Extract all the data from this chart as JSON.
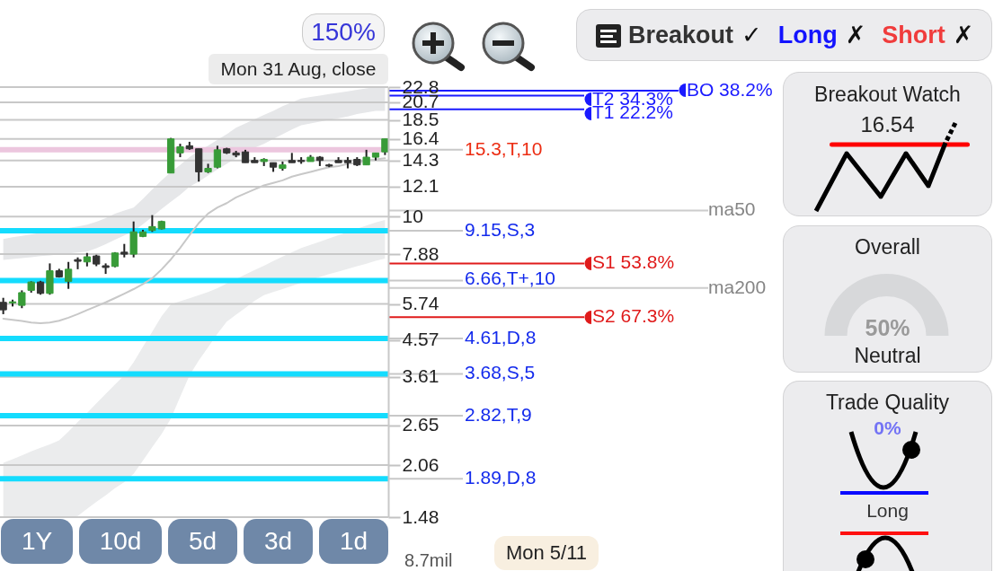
{
  "chart_data": [
    {
      "type": "candlestick",
      "categories": [
        null,
        null,
        null,
        null,
        null,
        null,
        null,
        null,
        null,
        null,
        null,
        null,
        null,
        null,
        null,
        null,
        null,
        null,
        null,
        null,
        null,
        null,
        null,
        null,
        null,
        null,
        null,
        null,
        null,
        null,
        null,
        null,
        null,
        null,
        null,
        null,
        null,
        null,
        null,
        null,
        null,
        null
      ],
      "ohlc": [
        [
          5.8,
          5.97,
          5.38,
          5.53
        ],
        [
          5.78,
          5.9,
          5.65,
          5.82
        ],
        [
          5.69,
          6.26,
          5.59,
          6.17
        ],
        [
          6.26,
          6.63,
          6.17,
          6.6
        ],
        [
          6.6,
          6.65,
          6.09,
          6.14
        ],
        [
          6.14,
          7.43,
          6.09,
          7.09
        ],
        [
          7.09,
          7.18,
          6.79,
          6.82
        ],
        [
          6.63,
          7.5,
          6.32,
          7.16
        ],
        [
          7.61,
          7.72,
          7.16,
          7.53
        ],
        [
          7.5,
          7.94,
          7.29,
          7.75
        ],
        [
          7.79,
          7.85,
          7.3,
          7.4
        ],
        [
          7.32,
          7.43,
          6.95,
          7.24
        ],
        [
          7.29,
          7.98,
          7.25,
          7.94
        ],
        [
          7.98,
          8.41,
          7.72,
          7.88
        ],
        [
          7.88,
          9.7,
          7.72,
          9.08
        ],
        [
          8.82,
          9.2,
          8.78,
          9.08
        ],
        [
          9.16,
          10.1,
          9.08,
          9.39
        ],
        [
          9.25,
          9.75,
          9.22,
          9.7
        ],
        [
          13.2,
          16.5,
          13.2,
          16.4
        ],
        [
          15.0,
          15.9,
          14.6,
          15.6
        ],
        [
          15.7,
          16.1,
          15.3,
          15.4
        ],
        [
          15.4,
          15.4,
          12.5,
          13.3
        ],
        [
          13.3,
          14.0,
          13.2,
          13.6
        ],
        [
          13.7,
          15.7,
          13.6,
          15.3
        ],
        [
          15.4,
          15.5,
          14.9,
          15.0
        ],
        [
          15.0,
          15.2,
          14.6,
          14.8
        ],
        [
          15.1,
          15.3,
          14.1,
          14.1
        ],
        [
          14.3,
          14.6,
          14.1,
          14.1
        ],
        [
          14.2,
          14.5,
          13.8,
          14.4
        ],
        [
          14.1,
          14.1,
          13.3,
          13.7
        ],
        [
          13.6,
          14.2,
          13.4,
          13.9
        ],
        [
          14.3,
          15.0,
          14.1,
          14.1
        ],
        [
          14.3,
          14.6,
          14.0,
          14.2
        ],
        [
          14.2,
          14.8,
          14.2,
          14.6
        ],
        [
          14.6,
          14.7,
          13.8,
          14.3
        ],
        [
          13.9,
          14.0,
          13.7,
          13.8
        ],
        [
          14.3,
          14.6,
          14.1,
          14.1
        ],
        [
          14.3,
          14.6,
          13.6,
          14.1
        ],
        [
          14.4,
          14.6,
          13.8,
          13.9
        ],
        [
          13.9,
          15.3,
          13.9,
          14.6
        ],
        [
          14.6,
          15.0,
          14.3,
          15.0
        ],
        [
          15.1,
          16.4,
          14.8,
          16.4
        ]
      ],
      "colors": [
        "#333333",
        "#389b38",
        "#389b38",
        "#389b38",
        "#333333",
        "#389b38",
        "#333333",
        "#389b38",
        "#333333",
        "#389b38",
        "#333333",
        "#333333",
        "#389b38",
        "#333333",
        "#389b38",
        "#389b38",
        "#389b38",
        "#389b38",
        "#389b38",
        "#389b38",
        "#333333",
        "#333333",
        "#389b38",
        "#389b38",
        "#333333",
        "#333333",
        "#333333",
        "#333333",
        "#389b38",
        "#333333",
        "#389b38",
        "#333333",
        "#333333",
        "#389b38",
        "#333333",
        "#333333",
        "#333333",
        "#333333",
        "#333333",
        "#389b38",
        "#389b38",
        "#389b38"
      ],
      "series": [
        {
          "type": "line",
          "color": "#c8c8c8",
          "values": [
            5.23,
            5.19,
            5.15,
            5.1,
            5.08,
            5.1,
            5.16,
            5.26,
            5.38,
            5.52,
            5.66,
            5.8,
            5.96,
            6.13,
            6.31,
            6.52,
            6.76,
            7.15,
            7.62,
            8.2,
            8.89,
            9.6,
            10.2,
            10.6,
            10.9,
            11.3,
            11.6,
            11.9,
            12.2,
            12.4,
            12.6,
            12.9,
            13.1,
            13.3,
            13.5,
            13.7,
            13.8,
            14.0,
            14.1,
            14.3,
            14.4,
            14.5
          ]
        },
        {
          "type": "area",
          "color": "#e6e7e9",
          "values": [
            null,
            null,
            null,
            null,
            null,
            null,
            null,
            null,
            null,
            null,
            null,
            null,
            null,
            null,
            null,
            null,
            null,
            null,
            null,
            null,
            null,
            null,
            null,
            null,
            null,
            null,
            null,
            null,
            null,
            null,
            null,
            null,
            null,
            null,
            null,
            null,
            null,
            null,
            null,
            null,
            null,
            null
          ],
          "upper": [
            8.68,
            8.77,
            8.85,
            8.94,
            9.03,
            9.12,
            9.22,
            9.31,
            9.4,
            9.5,
            9.68,
            9.91,
            10.2,
            10.4,
            10.6,
            11.2,
            11.9,
            12.6,
            13.3,
            13.9,
            14.6,
            15.2,
            15.7,
            16.3,
            16.9,
            17.6,
            18.1,
            18.6,
            19.1,
            19.6,
            20.2,
            20.7,
            21.2,
            21.4,
            21.6,
            21.8,
            22.0,
            22.2,
            22.4,
            22.6,
            22.8,
            22.8
          ],
          "lower": [
            7.6,
            7.64,
            7.68,
            7.73,
            7.78,
            7.82,
            7.87,
            7.92,
            7.96,
            8.01,
            8.18,
            8.4,
            8.64,
            8.88,
            9.12,
            9.53,
            9.99,
            10.5,
            11.0,
            11.5,
            12.1,
            12.5,
            13.0,
            13.5,
            14.0,
            14.5,
            15.0,
            15.5,
            15.9,
            16.4,
            16.9,
            17.4,
            17.9,
            18.1,
            18.3,
            18.5,
            18.7,
            18.9,
            19.2,
            19.4,
            19.6,
            19.6
          ]
        },
        {
          "type": "area",
          "color": "#ebeced",
          "values": [
            null,
            null,
            null,
            null,
            null,
            null,
            null,
            null,
            null,
            null,
            null,
            null,
            null,
            null,
            null,
            null,
            null,
            null,
            null,
            null,
            null,
            null,
            null,
            null,
            null,
            null,
            null,
            null,
            null,
            null,
            null,
            null,
            null,
            null,
            null,
            null,
            null,
            null,
            null,
            null,
            null,
            null
          ],
          "upper": [
            2.09,
            2.14,
            2.19,
            2.25,
            2.3,
            2.35,
            2.41,
            2.55,
            2.71,
            2.87,
            3.05,
            3.24,
            3.44,
            3.65,
            3.96,
            4.37,
            4.81,
            5.31,
            5.73,
            5.84,
            5.95,
            6.07,
            6.19,
            6.35,
            6.54,
            6.73,
            6.92,
            7.12,
            7.32,
            7.54,
            7.76,
            7.98,
            8.19,
            8.36,
            8.53,
            8.71,
            8.89,
            9.07,
            9.26,
            9.45,
            9.64,
            9.8
          ],
          "lower": [
            1.48,
            1.48,
            1.48,
            1.48,
            1.48,
            1.48,
            1.48,
            1.48,
            1.49,
            1.56,
            1.63,
            1.7,
            1.78,
            1.85,
            1.95,
            2.12,
            2.31,
            2.51,
            2.77,
            3.18,
            3.64,
            4.01,
            4.36,
            4.75,
            5.13,
            5.36,
            5.6,
            5.86,
            6.07,
            6.19,
            6.31,
            6.44,
            6.57,
            6.7,
            6.82,
            6.94,
            7.05,
            7.18,
            7.3,
            7.42,
            7.55,
            7.66
          ]
        }
      ],
      "ylim": [
        1.48,
        22.8
      ],
      "yticks": [
        22.8,
        20.7,
        18.5,
        16.4,
        14.3,
        12.1,
        10,
        7.88,
        5.74,
        4.57,
        3.61,
        2.65,
        2.06,
        1.48
      ],
      "log": true,
      "grid": "y",
      "tick_labels": "y",
      "ref_lines": [
        {
          "axis": "y",
          "value": 15.3,
          "label": "15.3,T,10",
          "color": "#ecc6de",
          "line_style": "solid"
        },
        {
          "axis": "y",
          "value": 9.15,
          "label": "9.15,S,3",
          "color": "#14dcfe",
          "line_style": "solid"
        },
        {
          "axis": "y",
          "value": 6.66,
          "label": "6.66,T+,10",
          "color": "#14dcfe",
          "line_style": "solid"
        },
        {
          "axis": "y",
          "value": 4.61,
          "label": "4.61,D,8",
          "color": "#14dcfe",
          "line_style": "solid"
        },
        {
          "axis": "y",
          "value": 3.68,
          "label": "3.68,S,5",
          "color": "#14dcfe",
          "line_style": "solid"
        },
        {
          "axis": "y",
          "value": 2.82,
          "label": "2.82,T,9",
          "color": "#14dcfe",
          "line_style": "solid"
        },
        {
          "axis": "y",
          "value": 1.89,
          "label": "1.89,D,8",
          "color": "#14dcfe",
          "line_style": "solid"
        },
        {
          "axis": "y",
          "value": 21.6,
          "label": "T2 34.3%",
          "color": "#1a1aff"
        },
        {
          "axis": "y",
          "value": 22.3,
          "label": "BO 38.2%",
          "color": "#1a1aff"
        },
        {
          "axis": "y",
          "value": 19.8,
          "label": "T1 22.2%",
          "color": "#1a1aff"
        },
        {
          "axis": "y",
          "value": 10.4,
          "label": "ma50",
          "color": "#cccccc"
        },
        {
          "axis": "y",
          "value": 7.43,
          "label": "S1 53.8%",
          "color": "#e01b1b"
        },
        {
          "axis": "y",
          "value": 6.36,
          "label": "ma200",
          "color": "#cccccc"
        },
        {
          "axis": "y",
          "value": 5.28,
          "label": "S2 67.3%",
          "color": "#e01b1b"
        }
      ],
      "annotations": [
        "150%",
        "Mon 31 Aug, close",
        "1Y",
        "10d",
        "5d",
        "3d",
        "1d",
        "Mon 5/11",
        "8.7mil"
      ]
    },
    {
      "type": "other",
      "annotations": [
        "Breakout",
        "✓",
        "Long",
        "✗",
        "Short",
        "✗"
      ],
      "colors": [
        "#333333",
        "#111111",
        "#1414ff",
        "#111111",
        "#f03c3c",
        "#111111"
      ]
    },
    {
      "type": "other",
      "title": "Breakout Watch",
      "annotations": [
        "16.54"
      ],
      "colors": [
        "#222222"
      ]
    },
    {
      "type": "other",
      "title": "Overall",
      "annotations": [
        "50%",
        "Neutral"
      ],
      "colors": [
        "#9a9a9a",
        "#222222"
      ]
    },
    {
      "type": "other",
      "title": "Trade Quality",
      "annotations": [
        "0%",
        "Long"
      ],
      "colors": [
        "#7373f5",
        "#333333"
      ]
    }
  ]
}
